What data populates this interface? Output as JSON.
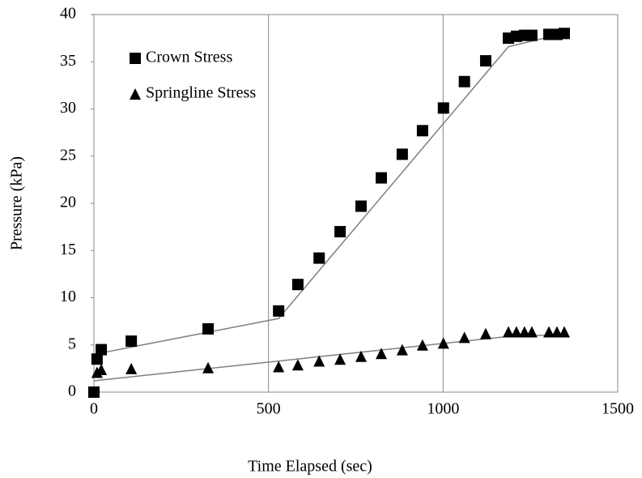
{
  "chart_data": {
    "type": "scatter",
    "x_label": "Time Elapsed (sec)",
    "y_label": "Pressure  (kPa)",
    "xlim": [
      0,
      1500
    ],
    "xticks": [
      0,
      500,
      1000,
      1500
    ],
    "ylim": [
      0,
      40
    ],
    "yticks": [
      0,
      5,
      10,
      15,
      20,
      25,
      30,
      35,
      40
    ],
    "grid": "x",
    "legend": "upper left",
    "series": [
      {
        "name": "Crown Stress",
        "color": "#000000",
        "marker": "square",
        "x": [
          0,
          9,
          21,
          107,
          327,
          529,
          584,
          645,
          705,
          765,
          823,
          883,
          941,
          1001,
          1061,
          1122,
          1187,
          1210,
          1233,
          1254,
          1303,
          1326,
          1347
        ],
        "values": [
          0,
          3.5,
          4.5,
          5.4,
          6.7,
          8.6,
          11.4,
          14.2,
          17.0,
          19.7,
          22.7,
          25.2,
          27.7,
          30.1,
          32.9,
          35.1,
          37.5,
          37.7,
          37.8,
          37.8,
          37.9,
          37.9,
          38.0
        ]
      },
      {
        "name": "Springline Stress",
        "color": "#000000",
        "marker": "triangle",
        "x": [
          9,
          21,
          107,
          327,
          529,
          584,
          645,
          705,
          765,
          823,
          883,
          941,
          1001,
          1061,
          1122,
          1187,
          1210,
          1233,
          1254,
          1303,
          1326,
          1347
        ],
        "values": [
          2.1,
          2.4,
          2.5,
          2.6,
          2.7,
          2.9,
          3.3,
          3.5,
          3.8,
          4.1,
          4.5,
          5.0,
          5.2,
          5.8,
          6.2,
          6.4,
          6.4,
          6.4,
          6.4,
          6.4,
          6.4,
          6.4
        ]
      }
    ],
    "trend_lines": [
      {
        "color": "#808080",
        "x": [
          0,
          529,
          1187,
          1347
        ],
        "values": [
          4.0,
          7.8,
          36.6,
          38.0
        ]
      },
      {
        "color": "#808080",
        "x": [
          0,
          1187,
          1347
        ],
        "values": [
          1.2,
          5.9,
          6.1
        ]
      }
    ]
  }
}
